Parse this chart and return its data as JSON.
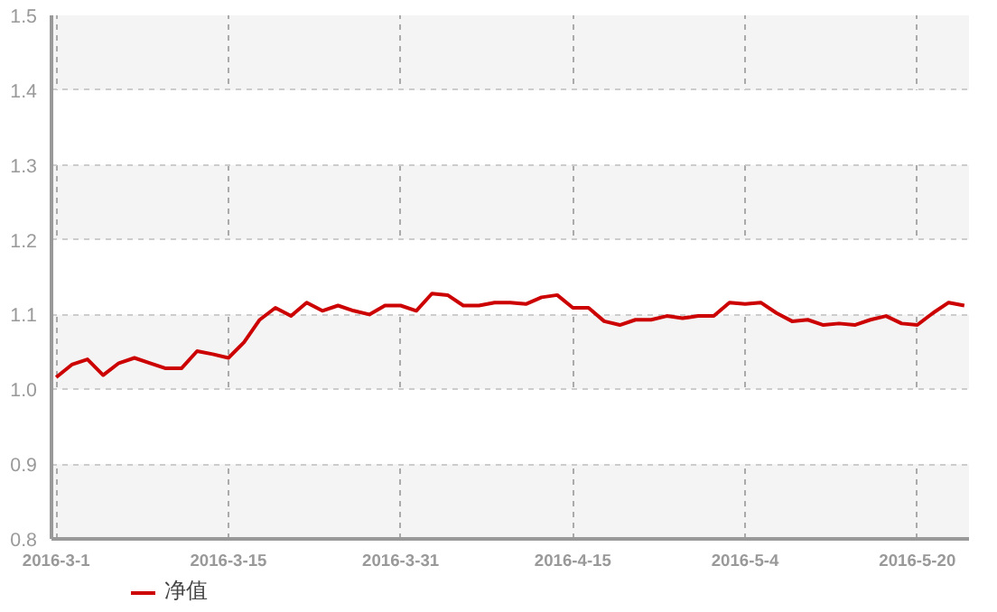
{
  "chart_data": {
    "type": "line",
    "categories": [
      "2016-3-1",
      null,
      null,
      null,
      null,
      null,
      null,
      null,
      null,
      null,
      null,
      "2016-3-15",
      null,
      null,
      null,
      null,
      null,
      null,
      null,
      null,
      null,
      null,
      "2016-3-31",
      null,
      null,
      null,
      null,
      null,
      null,
      null,
      null,
      null,
      null,
      "2016-4-15",
      null,
      null,
      null,
      null,
      null,
      null,
      null,
      null,
      null,
      null,
      "2016-5-4",
      null,
      null,
      null,
      null,
      null,
      null,
      null,
      null,
      null,
      null,
      "2016-5-20",
      null,
      null,
      null
    ],
    "series": [
      {
        "name": "净值",
        "color": "#cc0000",
        "values": [
          1.016,
          1.033,
          1.04,
          1.019,
          1.035,
          1.042,
          1.035,
          1.028,
          1.028,
          1.051,
          1.047,
          1.042,
          1.063,
          1.093,
          1.109,
          1.098,
          1.116,
          1.105,
          1.112,
          1.105,
          1.1,
          1.112,
          1.112,
          1.105,
          1.128,
          1.126,
          1.112,
          1.112,
          1.116,
          1.116,
          1.114,
          1.123,
          1.126,
          1.109,
          1.109,
          1.091,
          1.086,
          1.093,
          1.093,
          1.098,
          1.095,
          1.098,
          1.098,
          1.116,
          1.114,
          1.116,
          1.102,
          1.091,
          1.093,
          1.086,
          1.088,
          1.086,
          1.093,
          1.098,
          1.088,
          1.086,
          1.102,
          1.116,
          1.112
        ]
      }
    ],
    "ylim": [
      0.8,
      1.5
    ],
    "yticks": [
      0.8,
      0.9,
      {
        "value": 1.0,
        "label": "1.0"
      },
      1.1,
      1.2,
      1.3,
      1.4,
      1.5
    ],
    "grid": true,
    "legend": "bottom left",
    "marker": "none",
    "line_style": "solid"
  }
}
